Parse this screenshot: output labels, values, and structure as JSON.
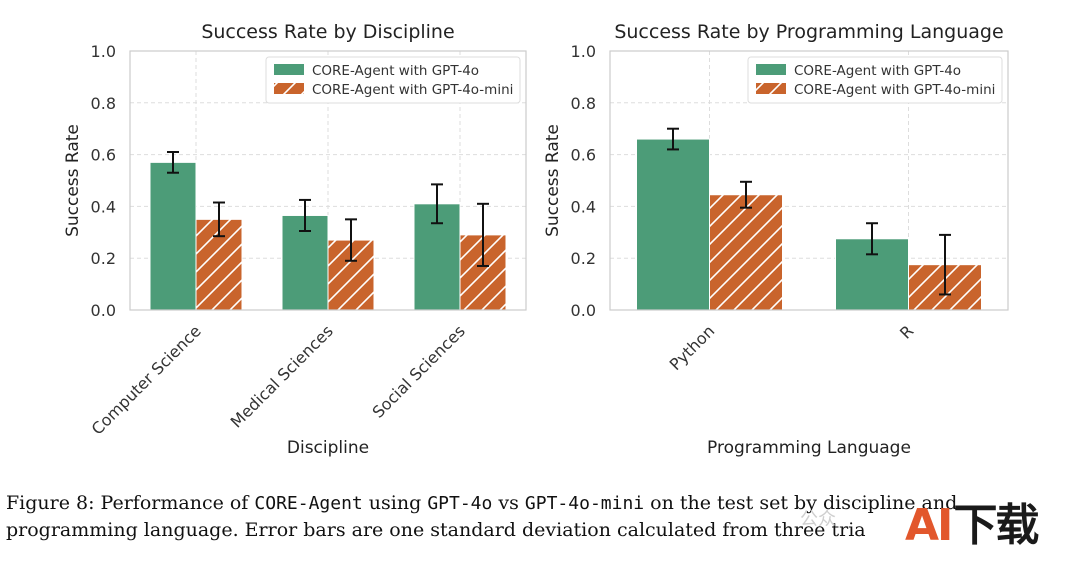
{
  "chart_data": [
    {
      "type": "bar",
      "title": "Success Rate by Discipline",
      "xlabel": "Discipline",
      "ylabel": "Success Rate",
      "ylim": [
        0,
        1.0
      ],
      "yticks": [
        "0.0",
        "0.2",
        "0.4",
        "0.6",
        "0.8",
        "1.0"
      ],
      "categories": [
        "Computer Science",
        "Medical Sciences",
        "Social Sciences"
      ],
      "grid": true,
      "legend_position": "top-right",
      "series": [
        {
          "name": "CORE-Agent with GPT-4o",
          "values": [
            0.57,
            0.365,
            0.41
          ],
          "errors": [
            0.04,
            0.06,
            0.075
          ],
          "color": "#4c9c78"
        },
        {
          "name": "CORE-Agent with GPT-4o-mini",
          "values": [
            0.35,
            0.27,
            0.29
          ],
          "errors": [
            0.065,
            0.08,
            0.12
          ],
          "color": "#c9642c",
          "hatch": true
        }
      ]
    },
    {
      "type": "bar",
      "title": "Success Rate by Programming Language",
      "xlabel": "Programming Language",
      "ylabel": "Success Rate",
      "ylim": [
        0,
        1.0
      ],
      "yticks": [
        "0.0",
        "0.2",
        "0.4",
        "0.6",
        "0.8",
        "1.0"
      ],
      "categories": [
        "Python",
        "R"
      ],
      "grid": true,
      "legend_position": "top-right",
      "series": [
        {
          "name": "CORE-Agent with GPT-4o",
          "values": [
            0.66,
            0.275
          ],
          "errors": [
            0.04,
            0.06
          ],
          "color": "#4c9c78"
        },
        {
          "name": "CORE-Agent with GPT-4o-mini",
          "values": [
            0.445,
            0.175
          ],
          "errors": [
            0.05,
            0.115
          ],
          "color": "#c9642c",
          "hatch": true
        }
      ]
    }
  ],
  "caption": {
    "p1": "Figure 8:  Performance of ",
    "core_agent": "CORE-Agent",
    "p2": " using ",
    "gpt4o": "GPT-4o",
    "p3": " vs ",
    "gpt4omini": "GPT-4o-mini",
    "p4": " on the test set by discipline and",
    "line2": "programming language. Error bars are one standard deviation calculated from three tria"
  },
  "watermark": {
    "ai": "AI",
    "download": "下载",
    "faint": "公众"
  }
}
